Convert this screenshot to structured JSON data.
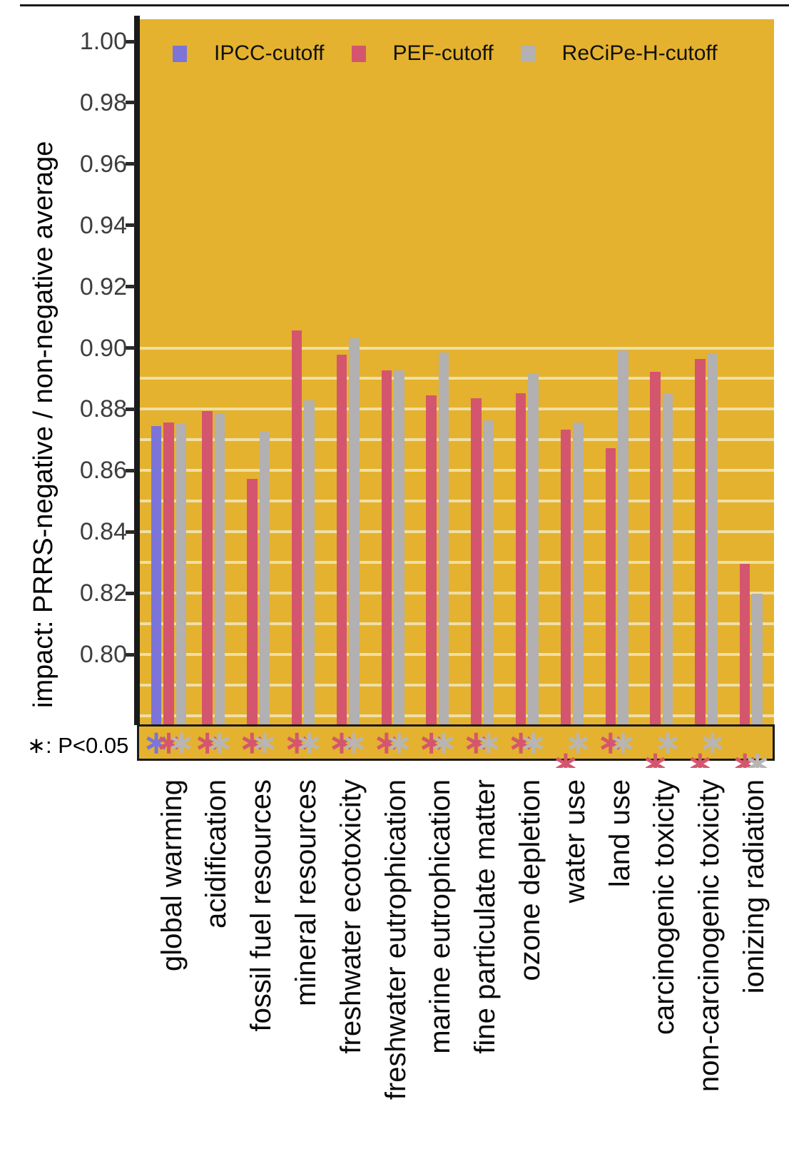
{
  "page": {
    "background": "#ffffff"
  },
  "y_axis": {
    "title": "impact: PRRS-negative / non-negative average",
    "tick_labels": [
      "1.00",
      "0.98",
      "0.96",
      "0.94",
      "0.92",
      "0.90",
      "0.88",
      "0.86",
      "0.84",
      "0.82",
      "0.80"
    ],
    "tick_values": [
      1.0,
      0.98,
      0.96,
      0.94,
      0.92,
      0.9,
      0.88,
      0.86,
      0.84,
      0.82,
      0.8
    ]
  },
  "legend": {
    "items": [
      {
        "label": "IPCC-cutoff",
        "color": "#7c74d8"
      },
      {
        "label": "PEF-cutoff",
        "color": "#d4566e"
      },
      {
        "label": "ReCiPe-H-cutoff",
        "color": "#b2b0b0"
      }
    ]
  },
  "significance_note": {
    "symbol": "∗",
    "text": ": P<0.05"
  },
  "chart_data": {
    "type": "bar",
    "title": "",
    "xlabel": "",
    "ylabel": "impact: PRRS-negative / non-negative average",
    "ylim": [
      0.777,
      1.0035
    ],
    "yticks": [
      1.0,
      0.98,
      0.96,
      0.94,
      0.92,
      0.9,
      0.88,
      0.86,
      0.84,
      0.82,
      0.8
    ],
    "grid_values": [
      0.9,
      0.89,
      0.88,
      0.87,
      0.86,
      0.85,
      0.84,
      0.83,
      0.82,
      0.81,
      0.8,
      0.79,
      0.78
    ],
    "panel_bg": "#e4b22e",
    "gridline_color": "#efdfa6",
    "legend_position": "top-inside",
    "categories": [
      "global warming",
      "acidification",
      "fossil fuel resources",
      "mineral resources",
      "freshwater ecotoxicity",
      "freshwater eutrophication",
      "marine eutrophication",
      "fine particulate matter",
      "ozone depletion",
      "water use",
      "land use",
      "carcinogenic toxicity",
      "non-carcinogenic toxicity",
      "ionizing radiation"
    ],
    "series": [
      {
        "name": "IPCC-cutoff",
        "color": "#7c74d8",
        "values": [
          0.8745,
          null,
          null,
          null,
          null,
          null,
          null,
          null,
          null,
          null,
          null,
          null,
          null,
          null
        ]
      },
      {
        "name": "PEF-cutoff",
        "color": "#d4566e",
        "values": [
          0.8757,
          0.8793,
          0.8572,
          0.9056,
          0.8977,
          0.8927,
          0.8846,
          0.8836,
          0.8852,
          0.8733,
          0.8674,
          0.8922,
          0.8964,
          0.8295
        ]
      },
      {
        "name": "ReCiPe-H-cutoff",
        "color": "#b2b0b0",
        "values": [
          0.8751,
          0.8784,
          0.8729,
          0.8829,
          0.9031,
          0.8926,
          0.8986,
          0.8763,
          0.8917,
          0.8756,
          0.8993,
          0.885,
          0.8982,
          0.8199
        ]
      }
    ],
    "significance_p_lt_0_05": [
      [
        "full",
        "full",
        "full"
      ],
      [
        null,
        "full",
        "full"
      ],
      [
        null,
        "full",
        "full"
      ],
      [
        null,
        "full",
        "full"
      ],
      [
        null,
        "full",
        "full"
      ],
      [
        null,
        "full",
        "full"
      ],
      [
        null,
        "full",
        "full"
      ],
      [
        null,
        "full",
        "full"
      ],
      [
        null,
        "full",
        "full"
      ],
      [
        null,
        "clipped",
        "full"
      ],
      [
        null,
        "full",
        "full"
      ],
      [
        null,
        "clipped",
        "full"
      ],
      [
        null,
        "clipped",
        "full"
      ],
      [
        null,
        "clipped",
        "clipped"
      ]
    ],
    "asterisk_colors": {
      "IPCC-cutoff": "#7c74d8",
      "PEF-cutoff": "#d4566e",
      "ReCiPe-H-cutoff": "#b7b5b5"
    }
  }
}
